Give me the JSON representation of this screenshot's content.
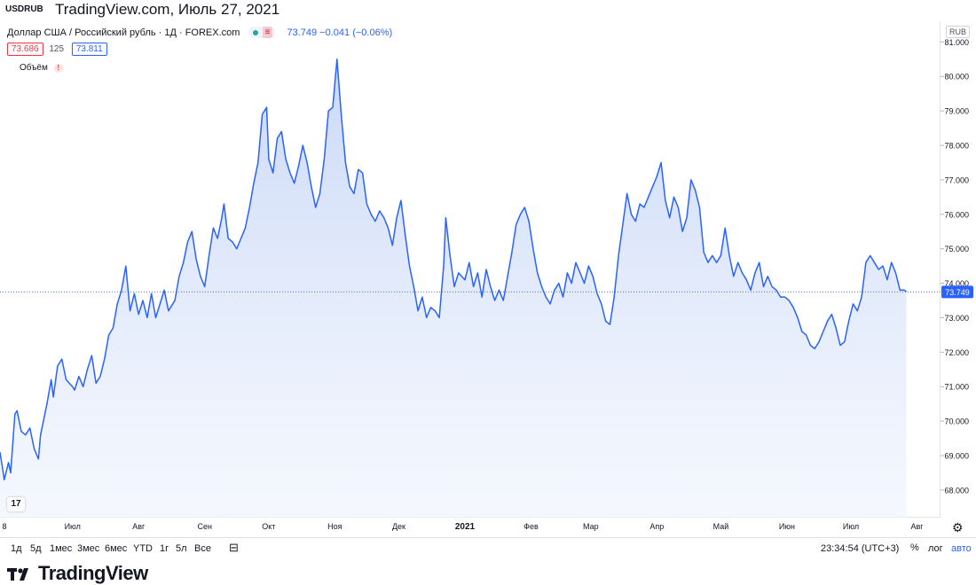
{
  "header": {
    "symbol": "USDRUB",
    "title": "TradingView.com, Июль 27, 2021"
  },
  "legend": {
    "series_name": "Доллар США / Российский рубль · 1Д · FOREX.com",
    "badge_label": "≡",
    "current": "73.749 −0.041 (−0.06%)",
    "bid": "73.686",
    "spread": "125",
    "ask": "73.811",
    "volume_label": "Объём",
    "volume_warning": "!"
  },
  "currency_button": "RUB",
  "bottom_bar": {
    "ranges": [
      "1д",
      "5д",
      "1мес",
      "3мес",
      "6мес",
      "YTD",
      "1г",
      "5л",
      "Все"
    ],
    "clock": "23:34:54 (UTC+3)",
    "percent": "%",
    "log": "лог",
    "auto": "авто"
  },
  "brand": "TradingView",
  "colors": {
    "line": "#2962ff",
    "area_top": "#c8d7f7",
    "last_price_bg": "#2962ff",
    "bid": "#f23645",
    "ask": "#2962ff",
    "axis_text": "#131722"
  },
  "icons": [
    "tradingview-logo-icon",
    "calendar-icon",
    "gear-icon",
    "warning-icon"
  ],
  "chart_data": {
    "type": "area",
    "symbol": "USDRUB",
    "ylim": [
      67.2,
      81.6
    ],
    "y_ticks": [
      "68.000",
      "69.000",
      "70.000",
      "71.000",
      "72.000",
      "73.000",
      "74.000",
      "75.000",
      "76.000",
      "77.000",
      "78.000",
      "79.000",
      "80.000",
      "81.000"
    ],
    "y_tick_values": [
      68,
      69,
      70,
      71,
      72,
      73,
      74,
      75,
      76,
      77,
      78,
      79,
      80,
      81
    ],
    "x_start": "2020-05-28",
    "x_end": "2021-08-12",
    "x_tick_labels": [
      "8",
      "Июл",
      "Авг",
      "Сен",
      "Окт",
      "Ноя",
      "Дек",
      "2021",
      "Фев",
      "Мар",
      "Апр",
      "Май",
      "Июн",
      "Июл",
      "Авг"
    ],
    "x_tick_dates": [
      "2020-05-28",
      "2020-07-01",
      "2020-08-01",
      "2020-09-01",
      "2020-10-01",
      "2020-11-01",
      "2020-12-01",
      "2021-01-01",
      "2021-02-01",
      "2021-03-01",
      "2021-04-01",
      "2021-05-01",
      "2021-06-01",
      "2021-07-01",
      "2021-08-01"
    ],
    "last_value": 73.749,
    "last_label": "73.749",
    "series": [
      {
        "points": [
          [
            "2020-05-28",
            69.1
          ],
          [
            "2020-05-30",
            68.3
          ],
          [
            "2020-06-01",
            68.8
          ],
          [
            "2020-06-02",
            68.5
          ],
          [
            "2020-06-04",
            70.2
          ],
          [
            "2020-06-05",
            70.3
          ],
          [
            "2020-06-07",
            69.7
          ],
          [
            "2020-06-09",
            69.6
          ],
          [
            "2020-06-11",
            69.8
          ],
          [
            "2020-06-13",
            69.2
          ],
          [
            "2020-06-15",
            68.9
          ],
          [
            "2020-06-16",
            69.6
          ],
          [
            "2020-06-19",
            70.5
          ],
          [
            "2020-06-21",
            71.2
          ],
          [
            "2020-06-22",
            70.7
          ],
          [
            "2020-06-24",
            71.6
          ],
          [
            "2020-06-26",
            71.8
          ],
          [
            "2020-06-28",
            71.2
          ],
          [
            "2020-07-01",
            71.0
          ],
          [
            "2020-07-02",
            70.9
          ],
          [
            "2020-07-04",
            71.3
          ],
          [
            "2020-07-06",
            71.0
          ],
          [
            "2020-07-08",
            71.5
          ],
          [
            "2020-07-10",
            71.9
          ],
          [
            "2020-07-12",
            71.1
          ],
          [
            "2020-07-14",
            71.3
          ],
          [
            "2020-07-16",
            71.8
          ],
          [
            "2020-07-18",
            72.5
          ],
          [
            "2020-07-20",
            72.7
          ],
          [
            "2020-07-22",
            73.4
          ],
          [
            "2020-07-24",
            73.8
          ],
          [
            "2020-07-26",
            74.5
          ],
          [
            "2020-07-28",
            73.2
          ],
          [
            "2020-07-30",
            73.7
          ],
          [
            "2020-08-01",
            73.1
          ],
          [
            "2020-08-03",
            73.5
          ],
          [
            "2020-08-05",
            73.0
          ],
          [
            "2020-08-07",
            73.7
          ],
          [
            "2020-08-09",
            73.0
          ],
          [
            "2020-08-11",
            73.4
          ],
          [
            "2020-08-13",
            73.8
          ],
          [
            "2020-08-15",
            73.2
          ],
          [
            "2020-08-18",
            73.5
          ],
          [
            "2020-08-20",
            74.2
          ],
          [
            "2020-08-22",
            74.6
          ],
          [
            "2020-08-24",
            75.2
          ],
          [
            "2020-08-26",
            75.5
          ],
          [
            "2020-08-28",
            74.7
          ],
          [
            "2020-08-30",
            74.2
          ],
          [
            "2020-09-01",
            73.9
          ],
          [
            "2020-09-03",
            74.8
          ],
          [
            "2020-09-05",
            75.6
          ],
          [
            "2020-09-07",
            75.3
          ],
          [
            "2020-09-09",
            75.9
          ],
          [
            "2020-09-10",
            76.3
          ],
          [
            "2020-09-12",
            75.3
          ],
          [
            "2020-09-14",
            75.2
          ],
          [
            "2020-09-16",
            75.0
          ],
          [
            "2020-09-18",
            75.3
          ],
          [
            "2020-09-20",
            75.6
          ],
          [
            "2020-09-22",
            76.2
          ],
          [
            "2020-09-24",
            76.9
          ],
          [
            "2020-09-26",
            77.5
          ],
          [
            "2020-09-28",
            78.9
          ],
          [
            "2020-09-30",
            79.1
          ],
          [
            "2020-10-01",
            77.6
          ],
          [
            "2020-10-03",
            77.2
          ],
          [
            "2020-10-05",
            78.2
          ],
          [
            "2020-10-07",
            78.4
          ],
          [
            "2020-10-09",
            77.6
          ],
          [
            "2020-10-11",
            77.2
          ],
          [
            "2020-10-13",
            76.9
          ],
          [
            "2020-10-15",
            77.4
          ],
          [
            "2020-10-17",
            78.0
          ],
          [
            "2020-10-19",
            77.5
          ],
          [
            "2020-10-21",
            76.8
          ],
          [
            "2020-10-23",
            76.2
          ],
          [
            "2020-10-25",
            76.6
          ],
          [
            "2020-10-27",
            77.6
          ],
          [
            "2020-10-29",
            79.0
          ],
          [
            "2020-10-31",
            79.1
          ],
          [
            "2020-11-02",
            80.5
          ],
          [
            "2020-11-04",
            78.9
          ],
          [
            "2020-11-06",
            77.5
          ],
          [
            "2020-11-08",
            76.8
          ],
          [
            "2020-11-10",
            76.6
          ],
          [
            "2020-11-12",
            77.3
          ],
          [
            "2020-11-14",
            77.2
          ],
          [
            "2020-11-16",
            76.3
          ],
          [
            "2020-11-18",
            76.0
          ],
          [
            "2020-11-20",
            75.8
          ],
          [
            "2020-11-22",
            76.1
          ],
          [
            "2020-11-24",
            75.9
          ],
          [
            "2020-11-26",
            75.6
          ],
          [
            "2020-11-28",
            75.1
          ],
          [
            "2020-11-30",
            75.9
          ],
          [
            "2020-12-02",
            76.4
          ],
          [
            "2020-12-04",
            75.4
          ],
          [
            "2020-12-06",
            74.5
          ],
          [
            "2020-12-08",
            73.9
          ],
          [
            "2020-12-10",
            73.2
          ],
          [
            "2020-12-12",
            73.6
          ],
          [
            "2020-12-14",
            73.0
          ],
          [
            "2020-12-16",
            73.3
          ],
          [
            "2020-12-18",
            73.2
          ],
          [
            "2020-12-20",
            73.0
          ],
          [
            "2020-12-22",
            74.5
          ],
          [
            "2020-12-23",
            75.9
          ],
          [
            "2020-12-25",
            74.8
          ],
          [
            "2020-12-27",
            73.9
          ],
          [
            "2020-12-29",
            74.3
          ],
          [
            "2021-01-01",
            74.1
          ],
          [
            "2021-01-03",
            74.6
          ],
          [
            "2021-01-05",
            73.9
          ],
          [
            "2021-01-07",
            74.3
          ],
          [
            "2021-01-09",
            73.6
          ],
          [
            "2021-01-11",
            74.4
          ],
          [
            "2021-01-13",
            73.9
          ],
          [
            "2021-01-15",
            73.5
          ],
          [
            "2021-01-17",
            73.8
          ],
          [
            "2021-01-19",
            73.5
          ],
          [
            "2021-01-21",
            74.2
          ],
          [
            "2021-01-23",
            74.9
          ],
          [
            "2021-01-25",
            75.7
          ],
          [
            "2021-01-27",
            76.0
          ],
          [
            "2021-01-29",
            76.2
          ],
          [
            "2021-01-31",
            75.8
          ],
          [
            "2021-02-02",
            75.0
          ],
          [
            "2021-02-04",
            74.3
          ],
          [
            "2021-02-06",
            73.9
          ],
          [
            "2021-02-08",
            73.6
          ],
          [
            "2021-02-10",
            73.4
          ],
          [
            "2021-02-12",
            73.8
          ],
          [
            "2021-02-14",
            74.0
          ],
          [
            "2021-02-16",
            73.6
          ],
          [
            "2021-02-18",
            74.3
          ],
          [
            "2021-02-20",
            74.0
          ],
          [
            "2021-02-22",
            74.6
          ],
          [
            "2021-02-24",
            74.3
          ],
          [
            "2021-02-26",
            74.0
          ],
          [
            "2021-02-28",
            74.5
          ],
          [
            "2021-03-02",
            74.2
          ],
          [
            "2021-03-04",
            73.7
          ],
          [
            "2021-03-06",
            73.4
          ],
          [
            "2021-03-08",
            72.9
          ],
          [
            "2021-03-10",
            72.8
          ],
          [
            "2021-03-12",
            73.6
          ],
          [
            "2021-03-14",
            74.8
          ],
          [
            "2021-03-16",
            75.7
          ],
          [
            "2021-03-18",
            76.6
          ],
          [
            "2021-03-20",
            76.0
          ],
          [
            "2021-03-22",
            75.8
          ],
          [
            "2021-03-24",
            76.3
          ],
          [
            "2021-03-26",
            76.2
          ],
          [
            "2021-03-28",
            76.5
          ],
          [
            "2021-03-30",
            76.8
          ],
          [
            "2021-04-01",
            77.1
          ],
          [
            "2021-04-03",
            77.5
          ],
          [
            "2021-04-05",
            76.4
          ],
          [
            "2021-04-07",
            75.9
          ],
          [
            "2021-04-09",
            76.5
          ],
          [
            "2021-04-11",
            76.2
          ],
          [
            "2021-04-13",
            75.5
          ],
          [
            "2021-04-15",
            75.9
          ],
          [
            "2021-04-17",
            77.0
          ],
          [
            "2021-04-19",
            76.7
          ],
          [
            "2021-04-21",
            76.2
          ],
          [
            "2021-04-23",
            74.9
          ],
          [
            "2021-04-25",
            74.6
          ],
          [
            "2021-04-27",
            74.8
          ],
          [
            "2021-04-29",
            74.6
          ],
          [
            "2021-05-01",
            74.8
          ],
          [
            "2021-05-03",
            75.6
          ],
          [
            "2021-05-05",
            74.8
          ],
          [
            "2021-05-07",
            74.2
          ],
          [
            "2021-05-09",
            74.6
          ],
          [
            "2021-05-11",
            74.3
          ],
          [
            "2021-05-13",
            74.1
          ],
          [
            "2021-05-15",
            73.8
          ],
          [
            "2021-05-17",
            74.3
          ],
          [
            "2021-05-19",
            74.6
          ],
          [
            "2021-05-21",
            73.9
          ],
          [
            "2021-05-23",
            74.2
          ],
          [
            "2021-05-25",
            73.9
          ],
          [
            "2021-05-27",
            73.8
          ],
          [
            "2021-05-29",
            73.6
          ],
          [
            "2021-05-31",
            73.6
          ],
          [
            "2021-06-02",
            73.5
          ],
          [
            "2021-06-04",
            73.3
          ],
          [
            "2021-06-06",
            73.0
          ],
          [
            "2021-06-08",
            72.6
          ],
          [
            "2021-06-10",
            72.5
          ],
          [
            "2021-06-12",
            72.2
          ],
          [
            "2021-06-14",
            72.1
          ],
          [
            "2021-06-16",
            72.3
          ],
          [
            "2021-06-18",
            72.6
          ],
          [
            "2021-06-20",
            72.9
          ],
          [
            "2021-06-22",
            73.1
          ],
          [
            "2021-06-24",
            72.7
          ],
          [
            "2021-06-26",
            72.2
          ],
          [
            "2021-06-28",
            72.3
          ],
          [
            "2021-06-30",
            72.9
          ],
          [
            "2021-07-02",
            73.4
          ],
          [
            "2021-07-04",
            73.2
          ],
          [
            "2021-07-06",
            73.6
          ],
          [
            "2021-07-08",
            74.6
          ],
          [
            "2021-07-10",
            74.8
          ],
          [
            "2021-07-12",
            74.6
          ],
          [
            "2021-07-14",
            74.4
          ],
          [
            "2021-07-16",
            74.5
          ],
          [
            "2021-07-18",
            74.1
          ],
          [
            "2021-07-20",
            74.6
          ],
          [
            "2021-07-22",
            74.3
          ],
          [
            "2021-07-24",
            73.8
          ],
          [
            "2021-07-26",
            73.8
          ],
          [
            "2021-07-27",
            73.749
          ]
        ]
      }
    ]
  }
}
